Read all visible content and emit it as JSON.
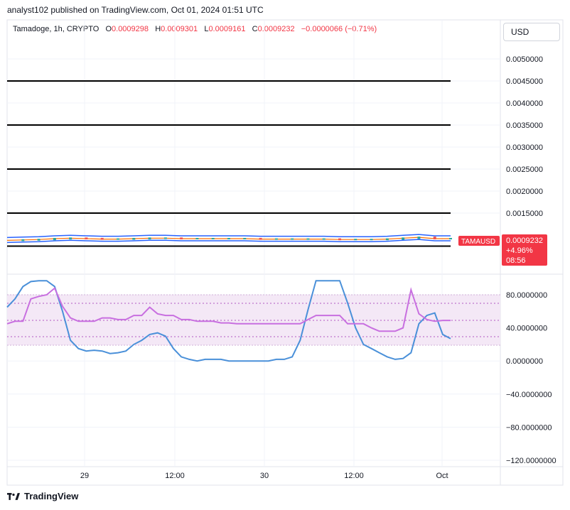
{
  "header": {
    "published_by": "analyst102 published on TradingView.com, Oct 01, 2024 01:51 UTC"
  },
  "legend": {
    "symbol": "Tamadoge, 1h, CRYPTO",
    "o_label": "O",
    "o_value": "0.0009298",
    "h_label": "H",
    "h_value": "0.0009301",
    "l_label": "L",
    "l_value": "0.0009161",
    "c_label": "C",
    "c_value": "0.0009232",
    "change": "−0.0000066 (−0.71%)"
  },
  "currency_button": "USD",
  "price_tag": {
    "symbol": "TAMAUSD",
    "price": "0.0009232",
    "change_pct": "+4.96%",
    "countdown": "08:56"
  },
  "colors": {
    "up": "#26a69a",
    "down": "#ef5350",
    "bb_band": "#2962ff",
    "bb_mid": "#ff6d00",
    "stoch_k": "#4a90d9",
    "rsi": "#c86fe0",
    "tag": "#f23645"
  },
  "footer": {
    "brand": "TradingView"
  },
  "chart_data": [
    {
      "type": "line",
      "title": "",
      "y_axis_ticks": [
        "0.0050000",
        "0.0045000",
        "0.0040000",
        "0.0035000",
        "0.0030000",
        "0.0025000",
        "0.0020000",
        "0.0015000"
      ],
      "ylim": [
        0.0006,
        0.0055
      ],
      "x_ticks": [
        "29",
        "12:00",
        "30",
        "12:00",
        "Oct"
      ],
      "horizontal_lines": [
        0.0045,
        0.0035,
        0.0025,
        0.0015,
        0.00075
      ],
      "price_series_approx": [
        0.00088,
        0.00089,
        0.0009,
        0.00092,
        0.00093,
        0.00092,
        0.00091,
        0.00091,
        0.00092,
        0.00093,
        0.00093,
        0.00092,
        0.00092,
        0.00092,
        0.00092,
        0.00092,
        0.00091,
        0.00091,
        0.00091,
        0.00091,
        0.00091,
        0.0009,
        0.0009,
        0.0009,
        0.00091,
        0.00093,
        0.00095,
        0.00092,
        0.00092
      ]
    },
    {
      "type": "line",
      "title": "",
      "y_axis_ticks": [
        "80.0000000",
        "40.0000000",
        "0.0000000",
        "−40.0000000",
        "−80.0000000",
        "−120.0000000"
      ],
      "ylim": [
        -120,
        100
      ],
      "band": [
        20,
        80
      ],
      "levels": [
        30,
        50,
        70
      ],
      "series": [
        {
          "values": [
            65,
            75,
            90,
            96,
            97,
            97,
            90,
            60,
            25,
            15,
            12,
            13,
            12,
            9,
            10,
            12,
            20,
            25,
            32,
            34,
            30,
            15,
            5,
            2,
            0,
            2,
            2,
            2,
            0,
            0,
            0,
            0,
            0,
            0,
            2,
            2,
            5,
            25,
            62,
            97,
            97,
            97,
            97,
            70,
            40,
            20,
            15,
            10,
            5,
            2,
            3,
            10,
            45,
            55,
            58,
            32,
            27
          ]
        },
        {
          "values": [
            45,
            48,
            48,
            75,
            78,
            80,
            88,
            66,
            52,
            48,
            48,
            48,
            52,
            52,
            50,
            50,
            55,
            55,
            65,
            57,
            55,
            55,
            50,
            50,
            48,
            48,
            48,
            46,
            46,
            45,
            45,
            45,
            45,
            45,
            45,
            45,
            45,
            45,
            50,
            55,
            55,
            55,
            55,
            45,
            45,
            45,
            40,
            36,
            36,
            36,
            40,
            86,
            57,
            50,
            48,
            49,
            49
          ]
        }
      ]
    }
  ]
}
